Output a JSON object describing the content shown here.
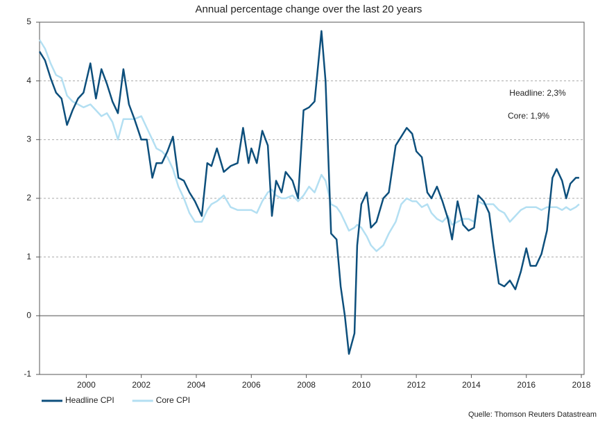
{
  "chart_data": {
    "type": "line",
    "title": "Annual percentage change over the last 20 years",
    "source": "Quelle: Thomson Reuters Datastream",
    "annotations": [
      "Headline: 2,3%",
      "Core: 1,9%"
    ],
    "x": [
      1998.3,
      1998.5,
      1998.7,
      1998.9,
      1999.1,
      1999.3,
      1999.5,
      1999.7,
      1999.9,
      2000.15,
      2000.35,
      2000.55,
      2000.75,
      2000.95,
      2001.15,
      2001.35,
      2001.55,
      2001.75,
      2002.0,
      2002.2,
      2002.4,
      2002.55,
      2002.75,
      2002.95,
      2003.15,
      2003.35,
      2003.55,
      2003.75,
      2003.95,
      2004.2,
      2004.4,
      2004.55,
      2004.75,
      2005.0,
      2005.25,
      2005.5,
      2005.7,
      2005.9,
      2006.0,
      2006.2,
      2006.4,
      2006.6,
      2006.75,
      2006.9,
      2007.1,
      2007.25,
      2007.5,
      2007.7,
      2007.9,
      2008.1,
      2008.3,
      2008.55,
      2008.7,
      2008.9,
      2009.1,
      2009.25,
      2009.4,
      2009.55,
      2009.75,
      2009.85,
      2010.0,
      2010.2,
      2010.35,
      2010.55,
      2010.8,
      2011.0,
      2011.25,
      2011.45,
      2011.65,
      2011.85,
      2012.0,
      2012.2,
      2012.4,
      2012.55,
      2012.75,
      2012.95,
      2013.15,
      2013.3,
      2013.5,
      2013.7,
      2013.9,
      2014.1,
      2014.25,
      2014.45,
      2014.65,
      2014.8,
      2015.0,
      2015.2,
      2015.4,
      2015.6,
      2015.8,
      2016.0,
      2016.15,
      2016.35,
      2016.55,
      2016.75,
      2016.95,
      2017.1,
      2017.3,
      2017.45,
      2017.6,
      2017.8,
      2017.92
    ],
    "series": [
      {
        "name": "Headline CPI",
        "color": "#0d4f7c",
        "values": [
          4.5,
          4.35,
          4.05,
          3.8,
          3.7,
          3.25,
          3.5,
          3.7,
          3.8,
          4.3,
          3.7,
          4.2,
          3.95,
          3.65,
          3.45,
          4.2,
          3.6,
          3.35,
          3.0,
          3.0,
          2.35,
          2.6,
          2.6,
          2.8,
          3.05,
          2.35,
          2.3,
          2.1,
          1.95,
          1.7,
          2.6,
          2.55,
          2.85,
          2.45,
          2.55,
          2.6,
          3.2,
          2.6,
          2.85,
          2.6,
          3.15,
          2.9,
          1.7,
          2.3,
          2.1,
          2.45,
          2.3,
          2.0,
          3.5,
          3.55,
          3.65,
          4.85,
          4.0,
          1.4,
          1.3,
          0.5,
          0.0,
          -0.65,
          -0.3,
          1.2,
          1.9,
          2.1,
          1.5,
          1.6,
          2.0,
          2.1,
          2.9,
          3.05,
          3.2,
          3.1,
          2.8,
          2.7,
          2.1,
          2.0,
          2.2,
          1.95,
          1.65,
          1.3,
          1.95,
          1.55,
          1.45,
          1.5,
          2.05,
          1.95,
          1.75,
          1.2,
          0.55,
          0.5,
          0.6,
          0.45,
          0.75,
          1.15,
          0.85,
          0.85,
          1.05,
          1.45,
          2.35,
          2.5,
          2.3,
          2.0,
          2.25,
          2.35,
          2.35
        ]
      },
      {
        "name": "Core CPI",
        "color": "#b3dff2",
        "values": [
          4.7,
          4.55,
          4.3,
          4.1,
          4.05,
          3.75,
          3.65,
          3.6,
          3.55,
          3.6,
          3.5,
          3.4,
          3.45,
          3.3,
          3.0,
          3.35,
          3.35,
          3.35,
          3.4,
          3.2,
          3.0,
          2.85,
          2.8,
          2.7,
          2.5,
          2.2,
          2.0,
          1.75,
          1.6,
          1.6,
          1.8,
          1.9,
          1.95,
          2.05,
          1.85,
          1.8,
          1.8,
          1.8,
          1.8,
          1.75,
          1.95,
          2.1,
          2.15,
          2.05,
          2.0,
          2.0,
          2.05,
          1.95,
          2.05,
          2.2,
          2.1,
          2.4,
          2.3,
          1.9,
          1.85,
          1.75,
          1.6,
          1.45,
          1.5,
          1.55,
          1.5,
          1.35,
          1.2,
          1.1,
          1.2,
          1.4,
          1.6,
          1.9,
          2.0,
          1.95,
          1.95,
          1.85,
          1.9,
          1.75,
          1.65,
          1.6,
          1.7,
          1.55,
          1.6,
          1.65,
          1.65,
          1.6,
          1.95,
          1.9,
          1.9,
          1.9,
          1.8,
          1.75,
          1.6,
          1.7,
          1.8,
          1.85,
          1.85,
          1.85,
          1.8,
          1.85,
          1.85,
          1.85,
          1.8,
          1.85,
          1.8,
          1.85,
          1.9
        ]
      }
    ],
    "xlim": [
      1998.3,
      2018.1
    ],
    "xticks": [
      2000,
      2002,
      2004,
      2006,
      2008,
      2010,
      2012,
      2014,
      2016,
      2018
    ],
    "ylim": [
      -1,
      5
    ],
    "yticks": [
      -1,
      0,
      1,
      2,
      3,
      4,
      5
    ],
    "grid": true,
    "legend": "bottom-left"
  }
}
